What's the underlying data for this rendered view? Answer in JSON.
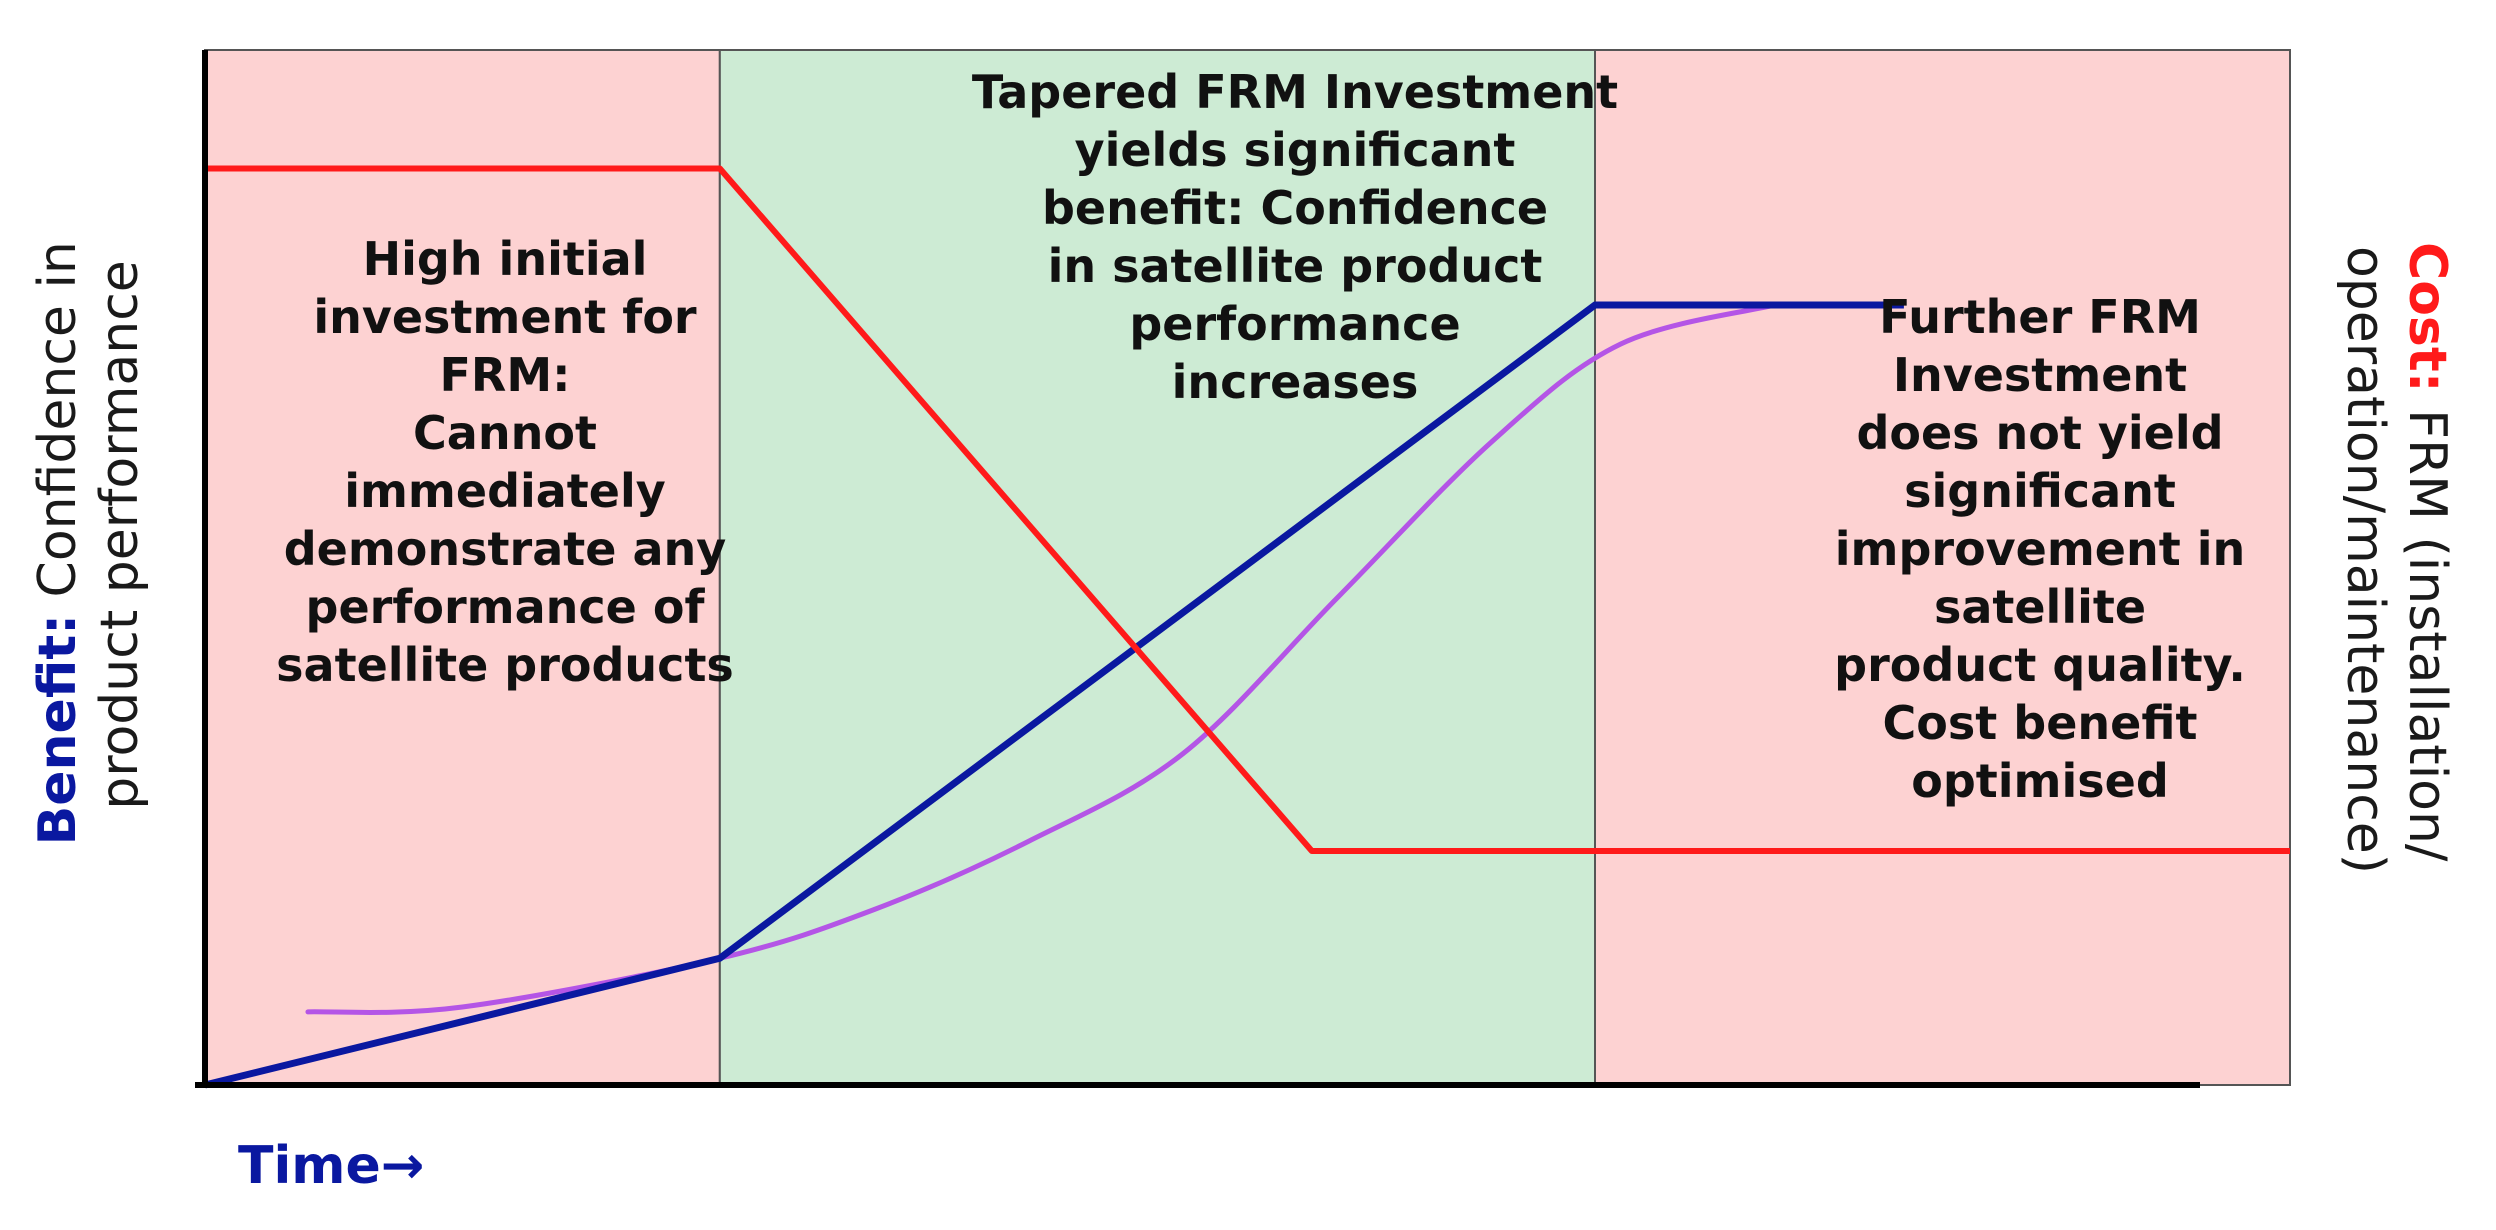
{
  "colors": {
    "pink_region": "#fdd2d2",
    "green_region": "#cdebd4",
    "cost_line": "#ff1a1a",
    "benefit_line": "#0a18a0",
    "curve": "#b455e6",
    "axis": "#000000",
    "benefit_label": "#0a18a0",
    "cost_label": "#ff1a1a"
  },
  "axes": {
    "x_label": "Time→",
    "left_label": {
      "bold": "Benefit:",
      "line1_rest": " Confidence in",
      "line2": "product performance"
    },
    "right_label": {
      "bold": "Cost:",
      "line1_rest": " FRM (installation/",
      "line2": "operation/maintenance)"
    }
  },
  "panels": [
    {
      "name": "initial",
      "lines": [
        "High initial",
        "investment for",
        "FRM:",
        "Cannot",
        "immediately",
        "demonstrate any",
        "performance of",
        "satellite products"
      ]
    },
    {
      "name": "tapered",
      "lines": [
        "Tapered FRM Investment",
        "yields significant",
        "benefit: Confidence",
        "in satellite product",
        "performance",
        "increases"
      ]
    },
    {
      "name": "further",
      "lines": [
        "Further FRM",
        "Investment",
        "does not yield",
        "significant",
        "improvement in",
        "satellite",
        "product quality.",
        "Cost benefit",
        "optimised"
      ]
    }
  ],
  "chart_data": {
    "type": "line",
    "series": [
      {
        "key": "cost",
        "x": [
          0,
          1,
          2.15,
          3.3,
          4.05
        ],
        "y": [
          0.94,
          0.94,
          0.24,
          0.24,
          0.24
        ]
      },
      {
        "key": "benefit",
        "x": [
          0,
          1,
          2.7,
          3.3
        ],
        "y": [
          0,
          0.13,
          0.8,
          0.8
        ]
      },
      {
        "key": "curve",
        "x": [
          0.2,
          0.5,
          1,
          1.3,
          1.6,
          1.9,
          2.2,
          2.5,
          2.75,
          3.05
        ],
        "y": [
          0.075,
          0.08,
          0.13,
          0.18,
          0.25,
          0.34,
          0.5,
          0.66,
          0.76,
          0.8
        ]
      }
    ],
    "regions": [
      {
        "from": 0,
        "to": 1,
        "kind": "pink"
      },
      {
        "from": 1,
        "to": 2.7,
        "kind": "green"
      },
      {
        "from": 2.7,
        "to": 4.05,
        "kind": "pink"
      }
    ],
    "xlim": [
      0,
      4.05
    ],
    "ylim": [
      0,
      1
    ]
  }
}
